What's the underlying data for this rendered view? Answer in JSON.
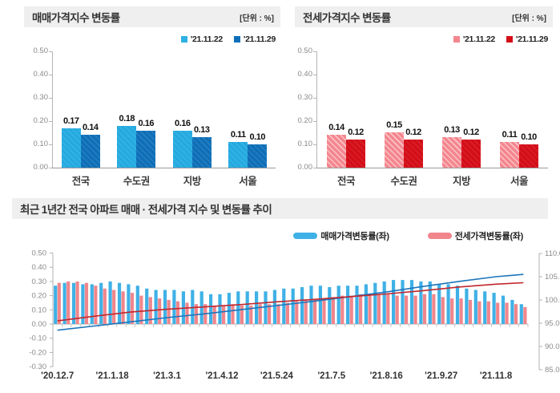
{
  "chart_data": [
    {
      "id": "sale-rate-by-region",
      "type": "bar",
      "title": "매매가격지수 변동률",
      "unit": "[단위 : %]",
      "categories": [
        "전국",
        "수도권",
        "지방",
        "서울"
      ],
      "series": [
        {
          "name": "'21.11.22",
          "color": "#2cb1e4",
          "hatch_color": "rgba(10,100,170,0.18)",
          "values": [
            0.17,
            0.18,
            0.16,
            0.11
          ]
        },
        {
          "name": "'21.11.29",
          "color": "#0e6fb8",
          "hatch_color": "rgba(255,255,255,0.10)",
          "values": [
            0.14,
            0.16,
            0.13,
            0.1
          ]
        }
      ],
      "ylim": [
        0,
        0.5
      ],
      "yticks": [
        "0.50",
        "0.40",
        "0.30",
        "0.20",
        "0.10",
        "0.00"
      ],
      "grid": false,
      "legend_position": "top-right"
    },
    {
      "id": "jeonse-rate-by-region",
      "type": "bar",
      "title": "전세가격지수 변동률",
      "unit": "[단위 : %]",
      "categories": [
        "전국",
        "수도권",
        "지방",
        "서울"
      ],
      "series": [
        {
          "name": "'21.11.22",
          "color": "#f4868e",
          "hatch_color": "rgba(255,255,255,0.50)",
          "values": [
            0.14,
            0.15,
            0.13,
            0.11
          ]
        },
        {
          "name": "'21.11.29",
          "color": "#d40e18",
          "hatch_color": "rgba(255,255,255,0.08)",
          "values": [
            0.12,
            0.12,
            0.12,
            0.1
          ]
        }
      ],
      "ylim": [
        0,
        0.5
      ],
      "yticks": [
        "0.50",
        "0.40",
        "0.30",
        "0.20",
        "0.10",
        "0.00"
      ],
      "grid": false,
      "legend_position": "top-right"
    },
    {
      "id": "one-year-trend",
      "type": "bar+line",
      "title": "최근 1년간 전국 아파트 매매 · 전세가격 지수 및 변동률 추이",
      "left_axis_label_series": "변동률(좌)",
      "left_ylim": [
        -0.3,
        0.5
      ],
      "left_yticks": [
        "0.50",
        "0.40",
        "0.30",
        "0.20",
        "0.10",
        "0.00",
        "-0.10",
        "-0.20",
        "-0.30"
      ],
      "right_ylim": [
        85,
        110
      ],
      "right_yticks": [
        "110.0",
        "105.0",
        "100.0",
        "95.0",
        "90.0",
        "85.0"
      ],
      "x_ticks": [
        {
          "week": 0,
          "label": "'20.12.7"
        },
        {
          "week": 6,
          "label": "'21.1.18"
        },
        {
          "week": 12,
          "label": "'21.3.1"
        },
        {
          "week": 18,
          "label": "'21.4.12"
        },
        {
          "week": 24,
          "label": "'21.5.24"
        },
        {
          "week": 30,
          "label": "'21.7.5"
        },
        {
          "week": 36,
          "label": "'21.8.16"
        },
        {
          "week": 42,
          "label": "'21.9.27"
        },
        {
          "week": 48,
          "label": "'21.11.8"
        }
      ],
      "bar_series": [
        {
          "name": "매매가격변동률(좌)",
          "color": "#3fb1e6",
          "values": [
            0.27,
            0.29,
            0.29,
            0.28,
            0.28,
            0.29,
            0.3,
            0.29,
            0.28,
            0.27,
            0.25,
            0.24,
            0.24,
            0.24,
            0.23,
            0.24,
            0.23,
            0.21,
            0.21,
            0.22,
            0.23,
            0.23,
            0.23,
            0.23,
            0.24,
            0.25,
            0.25,
            0.26,
            0.27,
            0.27,
            0.26,
            0.27,
            0.27,
            0.27,
            0.28,
            0.29,
            0.3,
            0.31,
            0.31,
            0.31,
            0.3,
            0.3,
            0.28,
            0.28,
            0.27,
            0.25,
            0.24,
            0.23,
            0.22,
            0.2,
            0.17,
            0.14
          ]
        },
        {
          "name": "전세가격변동률(좌)",
          "color": "#f0868c",
          "values": [
            0.29,
            0.3,
            0.3,
            0.29,
            0.27,
            0.25,
            0.24,
            0.23,
            0.22,
            0.2,
            0.19,
            0.18,
            0.17,
            0.16,
            0.15,
            0.14,
            0.14,
            0.13,
            0.13,
            0.14,
            0.13,
            0.13,
            0.14,
            0.14,
            0.14,
            0.15,
            0.16,
            0.17,
            0.17,
            0.18,
            0.19,
            0.2,
            0.2,
            0.21,
            0.2,
            0.21,
            0.21,
            0.2,
            0.2,
            0.2,
            0.21,
            0.21,
            0.19,
            0.18,
            0.18,
            0.17,
            0.16,
            0.16,
            0.15,
            0.15,
            0.14,
            0.12
          ]
        }
      ],
      "line_series": [
        {
          "name": "sale-index-line",
          "axis": "right",
          "color": "#1c75bb",
          "points": [
            [
              0,
              93.5
            ],
            [
              4,
              94.4
            ],
            [
              8,
              95.3
            ],
            [
              12,
              96.2
            ],
            [
              16,
              97.0
            ],
            [
              20,
              97.9
            ],
            [
              24,
              98.8
            ],
            [
              28,
              99.7
            ],
            [
              32,
              100.7
            ],
            [
              36,
              101.7
            ],
            [
              40,
              102.9
            ],
            [
              44,
              104.0
            ],
            [
              48,
              105.0
            ],
            [
              51,
              105.5
            ]
          ]
        },
        {
          "name": "jeonse-index-line",
          "axis": "right",
          "color": "#c1272d",
          "points": [
            [
              0,
              95.5
            ],
            [
              4,
              96.5
            ],
            [
              8,
              97.4
            ],
            [
              12,
              98.0
            ],
            [
              16,
              98.5
            ],
            [
              20,
              99.0
            ],
            [
              24,
              99.6
            ],
            [
              28,
              100.1
            ],
            [
              32,
              100.7
            ],
            [
              36,
              101.3
            ],
            [
              40,
              102.0
            ],
            [
              44,
              102.8
            ],
            [
              48,
              103.4
            ],
            [
              51,
              103.7
            ]
          ]
        }
      ]
    }
  ]
}
